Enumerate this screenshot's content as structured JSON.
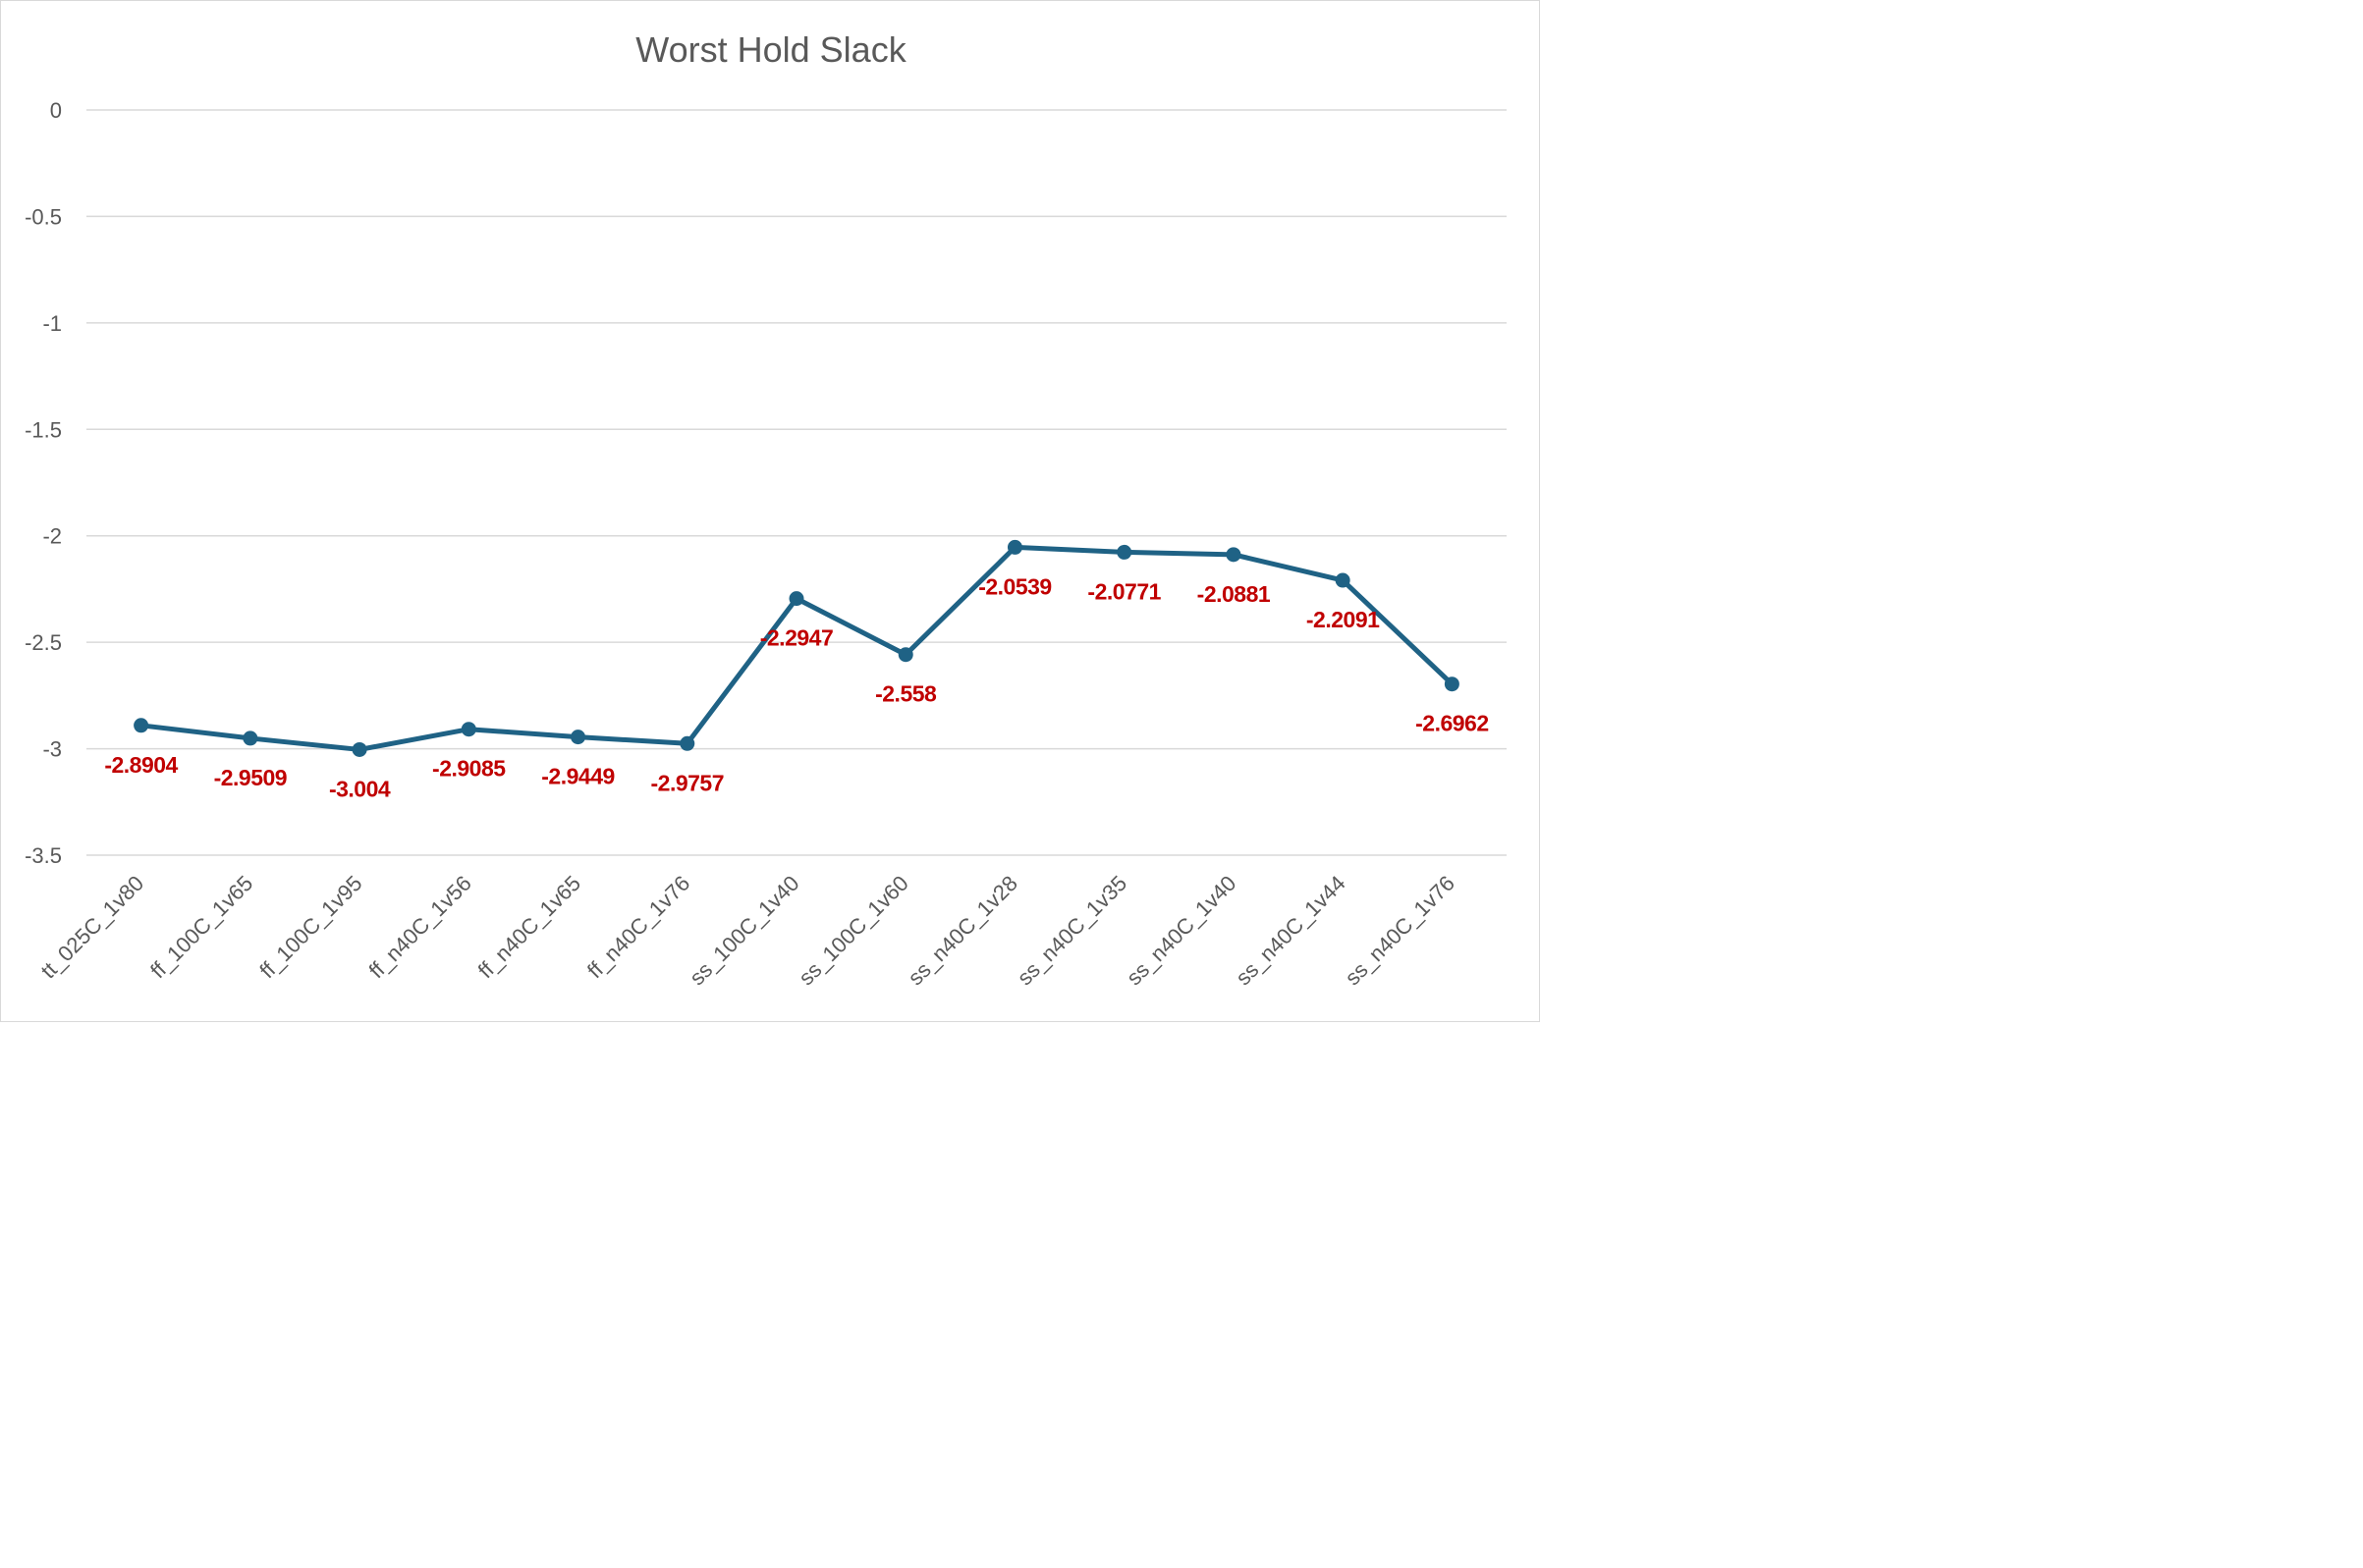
{
  "chart_data": {
    "type": "line",
    "title": "Worst Hold Slack",
    "xlabel": "",
    "ylabel": "",
    "categories": [
      "tt_025C_1v80",
      "ff_100C_1v65",
      "ff_100C_1v95",
      "ff_n40C_1v56",
      "ff_n40C_1v65",
      "ff_n40C_1v76",
      "ss_100C_1v40",
      "ss_100C_1v60",
      "ss_n40C_1v28",
      "ss_n40C_1v35",
      "ss_n40C_1v40",
      "ss_n40C_1v44",
      "ss_n40C_1v76"
    ],
    "series": [
      {
        "values": [
          -2.8904,
          -2.9509,
          -3.004,
          -2.9085,
          -2.9449,
          -2.9757,
          -2.2947,
          -2.558,
          -2.0539,
          -2.0771,
          -2.0881,
          -2.2091,
          -2.6962
        ],
        "data_labels": [
          "-2.8904",
          "-2.9509",
          "-3.004",
          "-2.9085",
          "-2.9449",
          "-2.9757",
          "-2.2947",
          "-2.558",
          "-2.0539",
          "-2.0771",
          "-2.0881",
          "-2.2091",
          "-2.6962"
        ],
        "color": "#1f6285"
      }
    ],
    "ylim": [
      -3.5,
      0
    ],
    "yticks": [
      0,
      -0.5,
      -1,
      -1.5,
      -2,
      -2.5,
      -3,
      -3.5
    ],
    "ytick_labels": [
      "0",
      "-0.5",
      "-1",
      "-1.5",
      "-2",
      "-2.5",
      "-3",
      "-3.5"
    ],
    "grid": true,
    "legend": "none",
    "data_label_color": "#c00000",
    "data_label_position": "below"
  }
}
